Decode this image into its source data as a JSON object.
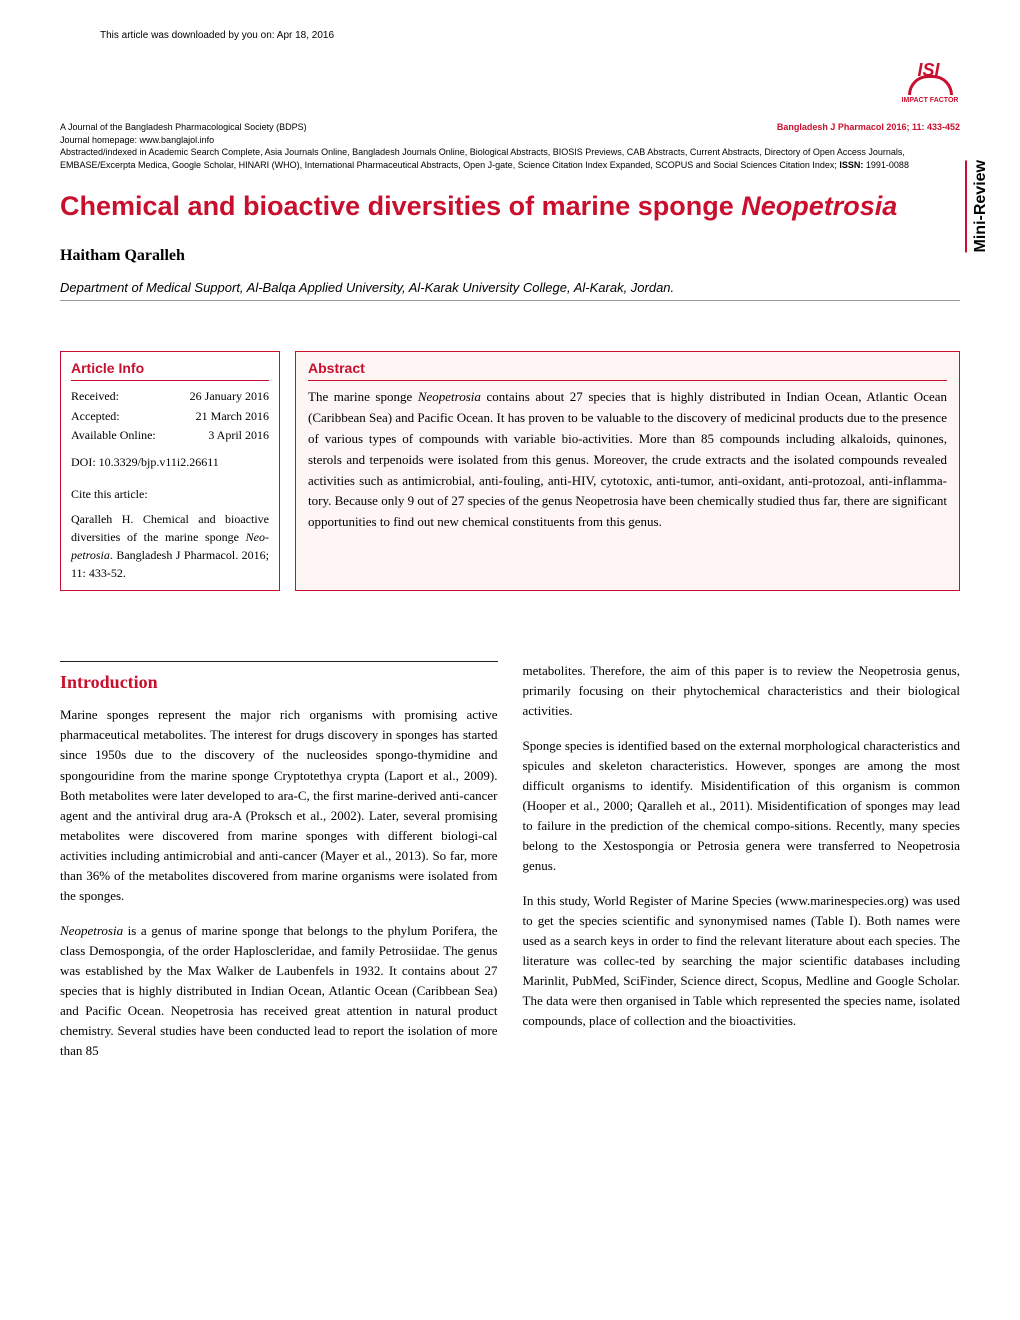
{
  "download_info": "This article was downloaded by you on: Apr 18, 2016",
  "logo": {
    "text": "ISI",
    "subtitle": "IMPACT FACTOR"
  },
  "journal_header": {
    "line1_left": "A Journal of the Bangladesh Pharmacological Society (BDPS)",
    "line1_right": "Bangladesh J Pharmacol 2016; 11: 433-452",
    "line2": "Journal homepage: www.banglajol.info",
    "line3": "Abstracted/indexed in Academic Search Complete, Asia Journals Online, Bangladesh Journals Online, Biological Abstracts, BIOSIS Previews, CAB Abstracts, Current Abstracts, Directory of Open Access Journals, EMBASE/Excerpta Medica, Google Scholar, HINARI (WHO), International Pharmaceutical Abstracts, Open J-gate, Science Citation Index Expanded, SCOPUS and Social Sciences Citation Index;",
    "issn_label": "ISSN:",
    "issn_value": " 1991-0088"
  },
  "mini_review": "Mini-Review",
  "title": {
    "main": "Chemical and bioactive diversities of marine sponge ",
    "italic": "Neopetrosia"
  },
  "author": "Haitham Qaralleh",
  "affiliation": "Department of Medical Support, Al-Balqa Applied University, Al-Karak University College, Al-Karak, Jordan.",
  "article_info": {
    "title": "Article Info",
    "received_label": "Received:",
    "received_value": "26 January 2016",
    "accepted_label": "Accepted:",
    "accepted_value": "21 March 2016",
    "available_label": "Available Online:",
    "available_value": "3 April 2016",
    "doi": "DOI: 10.3329/bjp.v11i2.26611",
    "cite_header": "Cite this article:",
    "citation_text": "Qaralleh H. Chemical and bioactive diversities of the marine sponge ",
    "citation_italic": "Neo-petrosia",
    "citation_end": ". Bangladesh J Pharmacol. 2016; 11: 433-52."
  },
  "abstract": {
    "title": "Abstract",
    "text_p1": "The marine sponge ",
    "text_italic1": "Neopetrosia",
    "text_p2": " contains about 27 species that is highly distributed in Indian Ocean, Atlantic Ocean (Caribbean Sea) and Pacific Ocean. It has proven to be valuable to the discovery of medicinal products due to the presence of various types of compounds with variable bio-activities. More than 85 compounds including alkaloids, quinones, sterols and terpenoids were isolated from this genus. Moreover, the crude extracts and the isolated compounds revealed activities such as antimicrobial, anti-fouling, anti-HIV, cytotoxic, anti-tumor, anti-oxidant, anti-protozoal, anti-inflamma-tory. Because only 9 out of 27 species of the genus Neopetrosia have been chemically studied thus far, there are significant opportunities to find out new chemical constituents from this genus."
  },
  "introduction": {
    "title": "Introduction",
    "col1_p1": "Marine sponges represent the major rich organisms with promising active pharmaceutical metabolites. The interest for drugs discovery in sponges has started since 1950s due to the discovery of the nucleosides spongo-thymidine and spongouridine from the marine sponge Cryptotethya crypta (Laport et al., 2009). Both metabolites were later developed to ara-C, the first marine-derived anti-cancer agent and the antiviral drug ara-A (Proksch et al., 2002). Later, several promising metabolites were discovered from marine sponges with different biologi-cal activities including antimicrobial and anti-cancer (Mayer et al., 2013). So far, more than 36% of the metabolites discovered from marine organisms were isolated from the sponges.",
    "col1_p2_start": "Neopetrosia",
    "col1_p2": " is a genus of marine sponge that belongs to the phylum Porifera, the class Demospongia, of the order Haploscleridae, and family Petrosiidae. The genus was established by the Max Walker de Laubenfels in 1932. It contains about 27 species that is highly distributed in Indian Ocean, Atlantic Ocean (Caribbean Sea) and Pacific Ocean. Neopetrosia has received great attention in natural product chemistry. Several studies have been conducted lead to report the isolation of more than 85",
    "col2_p1": "metabolites. Therefore, the aim of this paper is to review the Neopetrosia genus, primarily focusing on their phytochemical characteristics and their biological activities.",
    "col2_p2": "Sponge species is identified based on the external morphological characteristics and spicules and skeleton characteristics. However, sponges are among the most difficult organisms to identify. Misidentification of this organism is common (Hooper et al., 2000; Qaralleh et al., 2011). Misidentification of sponges may lead to failure in the prediction of the chemical compo-sitions. Recently, many species belong to the Xestospongia or Petrosia genera were transferred to Neopetrosia genus.",
    "col2_p3": "In this study, World Register of Marine Species (www.marinespecies.org) was used to get the species scientific and synonymised names (Table I). Both names were used as a search keys in order to find the relevant literature about each species. The literature was collec-ted by searching the major scientific databases including Marinlit, PubMed, SciFinder, Science direct, Scopus, Medline and Google Scholar. The data were then organised in Table which represented the species name, isolated compounds, place of collection and the bioactivities."
  },
  "colors": {
    "accent": "#c8102e",
    "background": "#ffffff",
    "abstract_bg": "#fef5f5",
    "text": "#000000",
    "border_gray": "#999999"
  }
}
